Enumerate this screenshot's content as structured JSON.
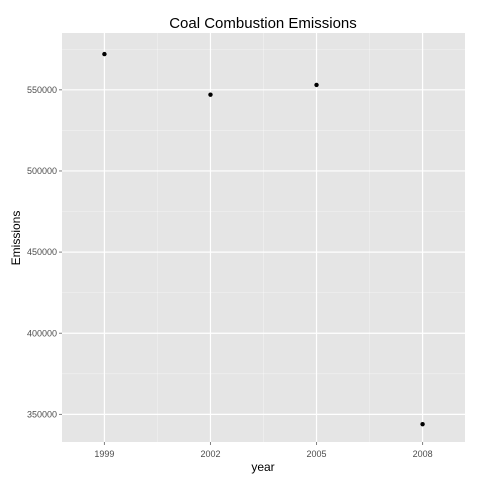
{
  "chart_data": {
    "type": "scatter",
    "title": "Coal Combustion Emissions",
    "xlabel": "year",
    "ylabel": "Emissions",
    "x": [
      1999,
      2002,
      2005,
      2008
    ],
    "y": [
      572000,
      547000,
      553000,
      344000
    ],
    "xlim": [
      1997.8,
      2009.2
    ],
    "ylim": [
      333000,
      585000
    ],
    "x_ticks": [
      "1999",
      "2002",
      "2005",
      "2008"
    ],
    "y_ticks": [
      "350000",
      "400000",
      "450000",
      "500000",
      "550000"
    ],
    "grid": true,
    "background": "#e5e5e5",
    "gridline_color": "#ffffff",
    "point_color": "#000000"
  }
}
